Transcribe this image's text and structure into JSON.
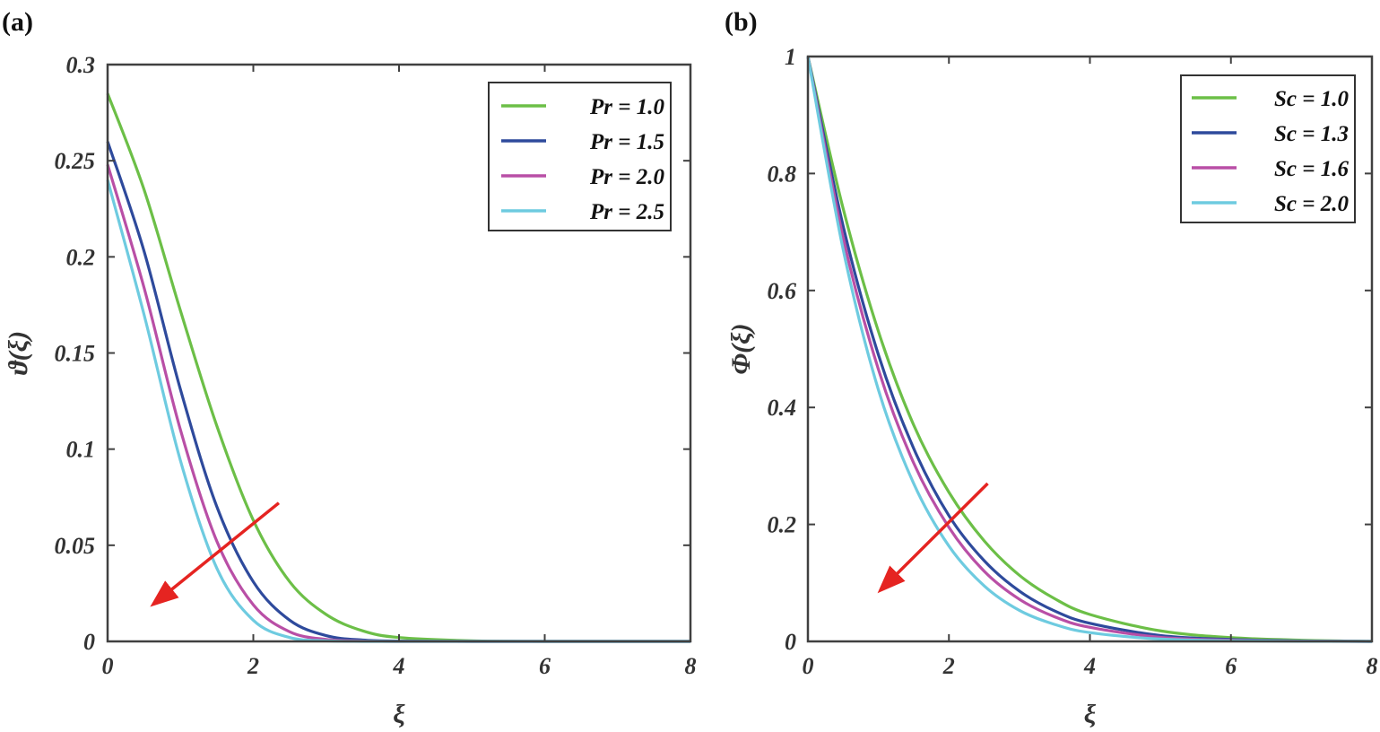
{
  "chart_data": [
    {
      "type": "line",
      "panel_label": "(a)",
      "xlabel": "ξ",
      "ylabel": "ϑ(ξ)",
      "xlim": [
        0,
        8
      ],
      "ylim": [
        0,
        0.3
      ],
      "xticks": [
        0,
        2,
        4,
        6,
        8
      ],
      "xtick_labels": [
        "0",
        "2",
        "4",
        "6",
        "8"
      ],
      "yticks": [
        0,
        0.05,
        0.1,
        0.15,
        0.2,
        0.25,
        0.3
      ],
      "ytick_labels": [
        "0",
        "0.05",
        "0.1",
        "0.15",
        "0.2",
        "0.25",
        "0.3"
      ],
      "grid": false,
      "legend_position": "top-right",
      "x": [
        0,
        0.5,
        1,
        1.5,
        2,
        2.5,
        3,
        3.5,
        4,
        5,
        6,
        7,
        8
      ],
      "series": [
        {
          "name": "Pr = 1.0",
          "color": "#6cbf47",
          "values": [
            0.285,
            0.235,
            0.172,
            0.112,
            0.063,
            0.031,
            0.014,
            0.0055,
            0.002,
            0.0003,
            0,
            0,
            0
          ]
        },
        {
          "name": "Pr = 1.5",
          "color": "#2e4a9c",
          "values": [
            0.26,
            0.203,
            0.131,
            0.07,
            0.031,
            0.011,
            0.003,
            0.0007,
            0.0002,
            0,
            0,
            0,
            0
          ]
        },
        {
          "name": "Pr = 2.0",
          "color": "#b94fa6",
          "values": [
            0.248,
            0.184,
            0.11,
            0.052,
            0.019,
            0.005,
            0.001,
            0.0002,
            0,
            0,
            0,
            0,
            0
          ]
        },
        {
          "name": "Pr = 2.5",
          "color": "#6ecbe0",
          "values": [
            0.24,
            0.17,
            0.094,
            0.038,
            0.011,
            0.002,
            0.0003,
            0,
            0,
            0,
            0,
            0,
            0
          ]
        }
      ],
      "annotation_arrow": {
        "from": [
          2.35,
          0.072
        ],
        "to": [
          0.65,
          0.02
        ],
        "color": "#e52421"
      }
    },
    {
      "type": "line",
      "panel_label": "(b)",
      "xlabel": "ξ",
      "ylabel": "Φ(ξ)",
      "xlim": [
        0,
        8
      ],
      "ylim": [
        0,
        1
      ],
      "xticks": [
        0,
        2,
        4,
        6,
        8
      ],
      "xtick_labels": [
        "0",
        "2",
        "4",
        "6",
        "8"
      ],
      "yticks": [
        0,
        0.2,
        0.4,
        0.6,
        0.8,
        1
      ],
      "ytick_labels": [
        "0",
        "0.2",
        "0.4",
        "0.6",
        "0.8",
        "1"
      ],
      "grid": false,
      "legend_position": "top-right",
      "x": [
        0,
        0.5,
        1,
        1.5,
        2,
        2.5,
        3,
        3.5,
        4,
        5,
        6,
        7,
        8
      ],
      "series": [
        {
          "name": "Sc = 1.0",
          "color": "#6cbf47",
          "values": [
            1.0,
            0.74,
            0.53,
            0.37,
            0.255,
            0.172,
            0.113,
            0.073,
            0.046,
            0.018,
            0.0065,
            0.002,
            0
          ]
        },
        {
          "name": "Sc = 1.3",
          "color": "#2e4a9c",
          "values": [
            1.0,
            0.71,
            0.49,
            0.33,
            0.215,
            0.138,
            0.086,
            0.052,
            0.031,
            0.01,
            0.0032,
            0.0008,
            0
          ]
        },
        {
          "name": "Sc = 1.6",
          "color": "#b94fa6",
          "values": [
            1.0,
            0.69,
            0.465,
            0.305,
            0.195,
            0.12,
            0.072,
            0.042,
            0.024,
            0.007,
            0.002,
            0.0005,
            0
          ]
        },
        {
          "name": "Sc = 2.0",
          "color": "#6ecbe0",
          "values": [
            1.0,
            0.67,
            0.43,
            0.27,
            0.163,
            0.095,
            0.053,
            0.029,
            0.015,
            0.004,
            0.001,
            0.0002,
            0
          ]
        }
      ],
      "annotation_arrow": {
        "from": [
          2.55,
          0.27
        ],
        "to": [
          1.05,
          0.09
        ],
        "color": "#e52421"
      }
    }
  ]
}
